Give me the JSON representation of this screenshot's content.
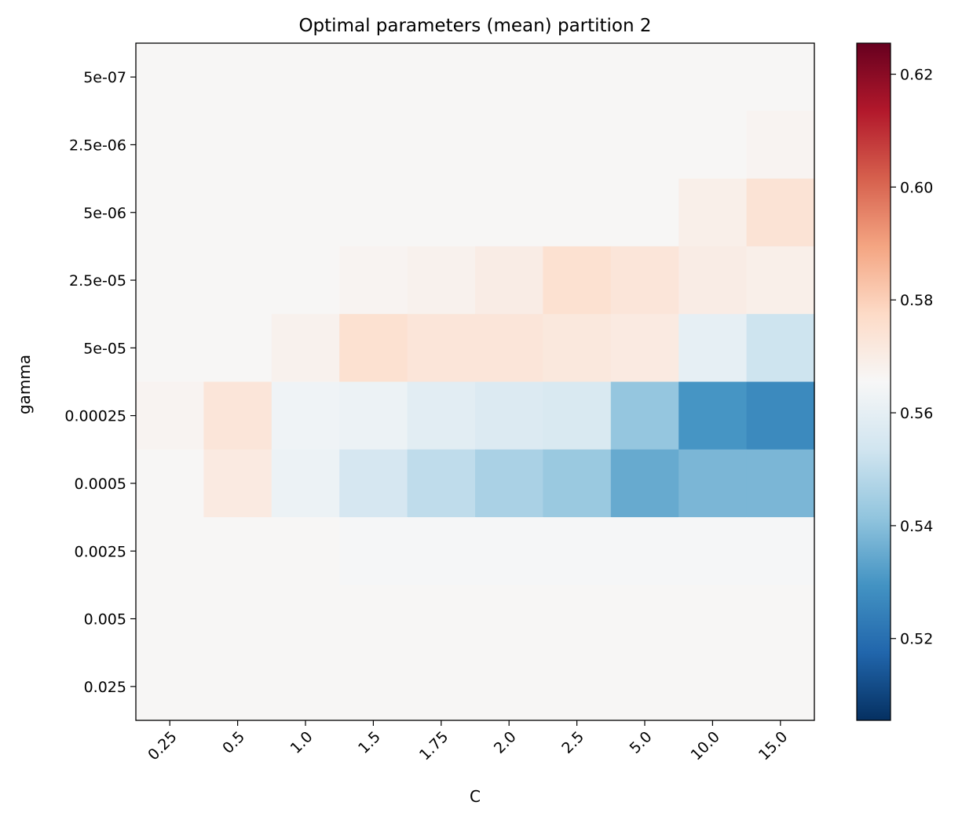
{
  "chart_data": {
    "type": "heatmap",
    "title": "Optimal parameters (mean) partition 2",
    "xlabel": "C",
    "ylabel": "gamma",
    "x_categories": [
      "0.25",
      "0.5",
      "1.0",
      "1.5",
      "1.75",
      "2.0",
      "2.5",
      "5.0",
      "10.0",
      "15.0"
    ],
    "y_categories": [
      "5e-07",
      "2.5e-06",
      "5e-06",
      "2.5e-05",
      "5e-05",
      "0.00025",
      "0.0005",
      "0.0025",
      "0.005",
      "0.025"
    ],
    "values": [
      [
        0.566,
        0.566,
        0.566,
        0.566,
        0.566,
        0.566,
        0.566,
        0.566,
        0.566,
        0.566
      ],
      [
        0.566,
        0.566,
        0.566,
        0.566,
        0.566,
        0.566,
        0.566,
        0.566,
        0.566,
        0.567
      ],
      [
        0.566,
        0.566,
        0.566,
        0.566,
        0.566,
        0.566,
        0.566,
        0.566,
        0.569,
        0.574
      ],
      [
        0.566,
        0.566,
        0.566,
        0.567,
        0.568,
        0.57,
        0.575,
        0.573,
        0.57,
        0.569
      ],
      [
        0.566,
        0.566,
        0.568,
        0.575,
        0.573,
        0.573,
        0.572,
        0.571,
        0.56,
        0.553
      ],
      [
        0.567,
        0.573,
        0.563,
        0.562,
        0.559,
        0.557,
        0.556,
        0.542,
        0.53,
        0.527
      ],
      [
        0.566,
        0.571,
        0.562,
        0.555,
        0.55,
        0.546,
        0.543,
        0.535,
        0.538,
        0.538
      ],
      [
        0.566,
        0.566,
        0.566,
        0.565,
        0.565,
        0.565,
        0.565,
        0.565,
        0.565,
        0.565
      ],
      [
        0.566,
        0.566,
        0.566,
        0.566,
        0.566,
        0.566,
        0.566,
        0.566,
        0.566,
        0.566
      ],
      [
        0.566,
        0.566,
        0.566,
        0.566,
        0.566,
        0.566,
        0.566,
        0.566,
        0.566,
        0.566
      ]
    ],
    "colormap": "RdBu_r",
    "vmin": 0.5055,
    "vmax": 0.6255,
    "colorbar_ticks": [
      0.52,
      0.54,
      0.56,
      0.58,
      0.6,
      0.62
    ],
    "colorbar_tick_labels": [
      "0.52",
      "0.54",
      "0.56",
      "0.58",
      "0.60",
      "0.62"
    ],
    "grid": false,
    "colorbar_placement": "right"
  }
}
